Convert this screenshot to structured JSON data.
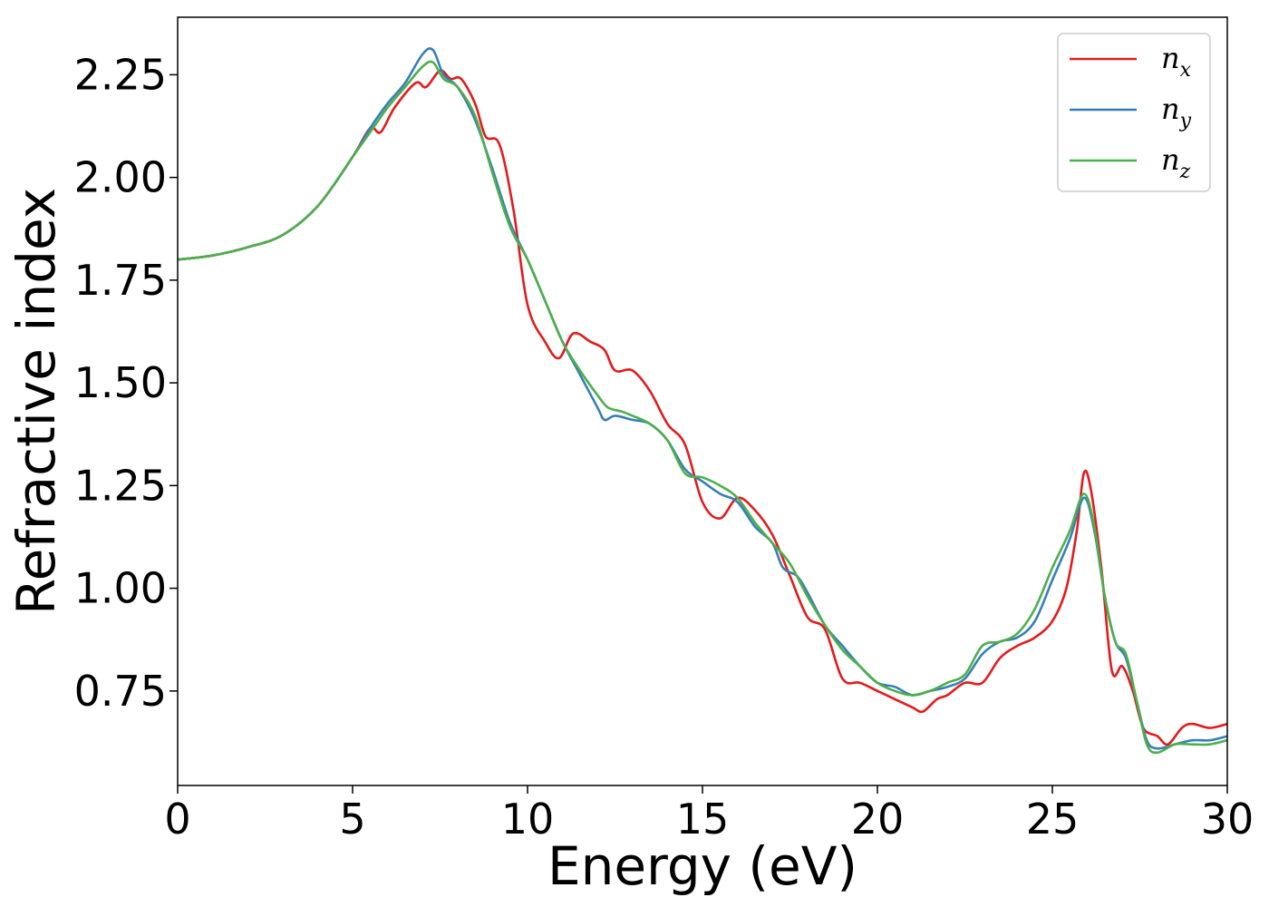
{
  "chart_data": {
    "type": "line",
    "title": "",
    "xlabel": "Energy (eV)",
    "ylabel": "Refractive index",
    "xlim": [
      0,
      30
    ],
    "ylim": [
      0.52,
      2.39
    ],
    "xticks": [
      0,
      5,
      10,
      15,
      20,
      25,
      30
    ],
    "xtick_labels": [
      "0",
      "5",
      "10",
      "15",
      "20",
      "25",
      "30"
    ],
    "yticks": [
      0.75,
      1.0,
      1.25,
      1.5,
      1.75,
      2.0,
      2.25
    ],
    "ytick_labels": [
      "0.75",
      "1.00",
      "1.25",
      "1.50",
      "1.75",
      "2.00",
      "2.25"
    ],
    "grid": false,
    "legend_position": "top-right",
    "series": [
      {
        "name": "n_x",
        "label_base": "n",
        "label_sub": "x",
        "color": "#e41a1c",
        "points": [
          [
            0,
            1.8
          ],
          [
            1,
            1.81
          ],
          [
            2,
            1.83
          ],
          [
            3,
            1.86
          ],
          [
            4,
            1.93
          ],
          [
            5,
            2.05
          ],
          [
            5.5,
            2.12
          ],
          [
            5.8,
            2.11
          ],
          [
            6.2,
            2.17
          ],
          [
            6.8,
            2.23
          ],
          [
            7.1,
            2.22
          ],
          [
            7.5,
            2.26
          ],
          [
            7.8,
            2.24
          ],
          [
            8.1,
            2.24
          ],
          [
            8.5,
            2.18
          ],
          [
            8.8,
            2.1
          ],
          [
            9.2,
            2.08
          ],
          [
            9.6,
            1.92
          ],
          [
            10,
            1.69
          ],
          [
            10.5,
            1.6
          ],
          [
            10.9,
            1.56
          ],
          [
            11.3,
            1.62
          ],
          [
            11.8,
            1.6
          ],
          [
            12.2,
            1.58
          ],
          [
            12.5,
            1.53
          ],
          [
            13,
            1.53
          ],
          [
            13.5,
            1.48
          ],
          [
            14,
            1.4
          ],
          [
            14.5,
            1.35
          ],
          [
            15,
            1.21
          ],
          [
            15.5,
            1.17
          ],
          [
            16,
            1.22
          ],
          [
            16.5,
            1.19
          ],
          [
            17,
            1.13
          ],
          [
            17.5,
            1.03
          ],
          [
            18,
            0.93
          ],
          [
            18.5,
            0.9
          ],
          [
            19,
            0.78
          ],
          [
            19.5,
            0.77
          ],
          [
            20,
            0.75
          ],
          [
            20.5,
            0.73
          ],
          [
            21,
            0.71
          ],
          [
            21.3,
            0.7
          ],
          [
            21.7,
            0.73
          ],
          [
            22,
            0.74
          ],
          [
            22.5,
            0.77
          ],
          [
            23,
            0.77
          ],
          [
            23.5,
            0.83
          ],
          [
            24,
            0.86
          ],
          [
            24.5,
            0.88
          ],
          [
            25,
            0.92
          ],
          [
            25.4,
            1.0
          ],
          [
            25.7,
            1.14
          ],
          [
            25.9,
            1.28
          ],
          [
            26.1,
            1.24
          ],
          [
            26.4,
            1.05
          ],
          [
            26.7,
            0.8
          ],
          [
            27,
            0.81
          ],
          [
            27.3,
            0.75
          ],
          [
            27.6,
            0.66
          ],
          [
            28,
            0.64
          ],
          [
            28.3,
            0.62
          ],
          [
            28.7,
            0.66
          ],
          [
            29,
            0.67
          ],
          [
            29.5,
            0.66
          ],
          [
            30,
            0.67
          ]
        ]
      },
      {
        "name": "n_y",
        "label_base": "n",
        "label_sub": "y",
        "color": "#377eb8",
        "points": [
          [
            0,
            1.8
          ],
          [
            1,
            1.81
          ],
          [
            2,
            1.83
          ],
          [
            3,
            1.86
          ],
          [
            4,
            1.93
          ],
          [
            5,
            2.05
          ],
          [
            5.5,
            2.12
          ],
          [
            6,
            2.18
          ],
          [
            6.5,
            2.23
          ],
          [
            7,
            2.3
          ],
          [
            7.3,
            2.31
          ],
          [
            7.6,
            2.25
          ],
          [
            8,
            2.22
          ],
          [
            8.5,
            2.14
          ],
          [
            9,
            2.02
          ],
          [
            9.5,
            1.89
          ],
          [
            10,
            1.8
          ],
          [
            10.5,
            1.7
          ],
          [
            11,
            1.6
          ],
          [
            11.5,
            1.52
          ],
          [
            12,
            1.44
          ],
          [
            12.2,
            1.41
          ],
          [
            12.5,
            1.42
          ],
          [
            13,
            1.41
          ],
          [
            13.5,
            1.4
          ],
          [
            14,
            1.36
          ],
          [
            14.5,
            1.29
          ],
          [
            15,
            1.26
          ],
          [
            15.5,
            1.23
          ],
          [
            16,
            1.21
          ],
          [
            16.5,
            1.15
          ],
          [
            17,
            1.11
          ],
          [
            17.3,
            1.05
          ],
          [
            17.7,
            1.03
          ],
          [
            18,
            0.99
          ],
          [
            18.5,
            0.91
          ],
          [
            19,
            0.86
          ],
          [
            19.5,
            0.81
          ],
          [
            20,
            0.77
          ],
          [
            20.5,
            0.76
          ],
          [
            21,
            0.74
          ],
          [
            21.5,
            0.75
          ],
          [
            22,
            0.76
          ],
          [
            22.5,
            0.78
          ],
          [
            23,
            0.84
          ],
          [
            23.5,
            0.87
          ],
          [
            24,
            0.88
          ],
          [
            24.5,
            0.92
          ],
          [
            25,
            1.02
          ],
          [
            25.5,
            1.12
          ],
          [
            25.9,
            1.22
          ],
          [
            26.2,
            1.14
          ],
          [
            26.5,
            0.98
          ],
          [
            26.8,
            0.87
          ],
          [
            27.1,
            0.83
          ],
          [
            27.4,
            0.73
          ],
          [
            27.7,
            0.63
          ],
          [
            28,
            0.61
          ],
          [
            28.5,
            0.62
          ],
          [
            29,
            0.63
          ],
          [
            29.5,
            0.63
          ],
          [
            30,
            0.64
          ]
        ]
      },
      {
        "name": "n_z",
        "label_base": "n",
        "label_sub": "z",
        "color": "#4daf4a",
        "points": [
          [
            0,
            1.8
          ],
          [
            1,
            1.81
          ],
          [
            2,
            1.83
          ],
          [
            3,
            1.86
          ],
          [
            4,
            1.93
          ],
          [
            5,
            2.05
          ],
          [
            5.5,
            2.11
          ],
          [
            6,
            2.17
          ],
          [
            6.5,
            2.22
          ],
          [
            7,
            2.27
          ],
          [
            7.3,
            2.28
          ],
          [
            7.6,
            2.24
          ],
          [
            8,
            2.22
          ],
          [
            8.5,
            2.15
          ],
          [
            9,
            2.01
          ],
          [
            9.5,
            1.88
          ],
          [
            10,
            1.8
          ],
          [
            10.5,
            1.7
          ],
          [
            11,
            1.6
          ],
          [
            11.5,
            1.53
          ],
          [
            12,
            1.47
          ],
          [
            12.3,
            1.44
          ],
          [
            12.7,
            1.43
          ],
          [
            13,
            1.42
          ],
          [
            13.5,
            1.4
          ],
          [
            14,
            1.36
          ],
          [
            14.5,
            1.28
          ],
          [
            15,
            1.27
          ],
          [
            15.5,
            1.25
          ],
          [
            16,
            1.22
          ],
          [
            16.5,
            1.16
          ],
          [
            17,
            1.11
          ],
          [
            17.5,
            1.06
          ],
          [
            18,
            0.98
          ],
          [
            18.5,
            0.91
          ],
          [
            19,
            0.85
          ],
          [
            19.5,
            0.81
          ],
          [
            20,
            0.77
          ],
          [
            20.5,
            0.75
          ],
          [
            21,
            0.74
          ],
          [
            21.5,
            0.75
          ],
          [
            22,
            0.77
          ],
          [
            22.5,
            0.79
          ],
          [
            23,
            0.86
          ],
          [
            23.5,
            0.87
          ],
          [
            24,
            0.89
          ],
          [
            24.5,
            0.95
          ],
          [
            25,
            1.05
          ],
          [
            25.5,
            1.14
          ],
          [
            25.9,
            1.23
          ],
          [
            26.2,
            1.15
          ],
          [
            26.5,
            0.98
          ],
          [
            26.8,
            0.87
          ],
          [
            27.1,
            0.84
          ],
          [
            27.4,
            0.73
          ],
          [
            27.7,
            0.62
          ],
          [
            28,
            0.6
          ],
          [
            28.5,
            0.62
          ],
          [
            29,
            0.62
          ],
          [
            29.5,
            0.62
          ],
          [
            30,
            0.63
          ]
        ]
      }
    ]
  }
}
